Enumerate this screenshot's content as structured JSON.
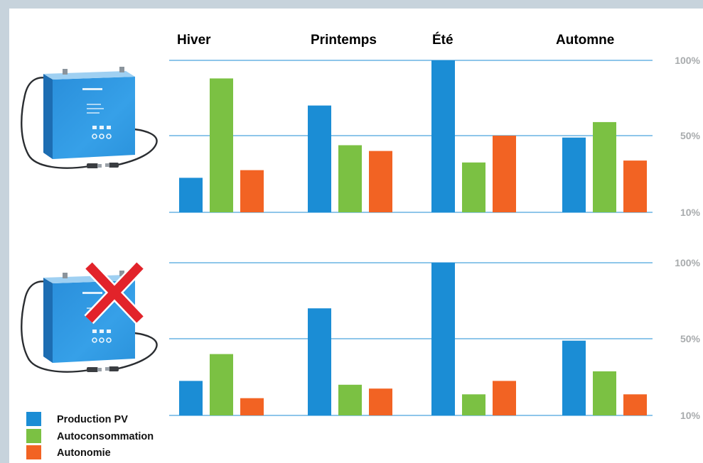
{
  "icons": {
    "panel_top": "battery-icon",
    "panel_bottom": "battery-icon",
    "panel_bottom_overlay": "red-cross-icon"
  },
  "colors": {
    "cross": "#e2232a"
  },
  "chart_data": [
    {
      "type": "bar",
      "categories": [
        "Hiver",
        "Printemps",
        "Été",
        "Automne"
      ],
      "series": [
        {
          "name": "Production PV",
          "color": "#1b8dd5",
          "values": [
            28,
            70,
            100,
            49
          ]
        },
        {
          "name": "Autoconsommation",
          "color": "#7bc143",
          "values": [
            88,
            45,
            36,
            59
          ]
        },
        {
          "name": "Autonomie",
          "color": "#f26323",
          "values": [
            32,
            42,
            50,
            37
          ]
        }
      ],
      "yticks": [
        10,
        50,
        100
      ],
      "ytick_labels": [
        "10%",
        "50%",
        "100%"
      ],
      "ylim": [
        10,
        100
      ],
      "y_axis_side": "right",
      "grid": true,
      "grid_color": "#4ba3de",
      "legend": "bottom-left"
    },
    {
      "type": "bar",
      "categories": [
        "Hiver",
        "Printemps",
        "Été",
        "Automne"
      ],
      "series": [
        {
          "name": "Production PV",
          "color": "#1b8dd5",
          "values": [
            28,
            70,
            100,
            49
          ]
        },
        {
          "name": "Autoconsommation",
          "color": "#7bc143",
          "values": [
            42,
            26,
            21,
            33
          ]
        },
        {
          "name": "Autonomie",
          "color": "#f26323",
          "values": [
            19,
            24,
            28,
            21
          ]
        }
      ],
      "yticks": [
        10,
        50,
        100
      ],
      "ytick_labels": [
        "10%",
        "50%",
        "100%"
      ],
      "ylim": [
        10,
        100
      ],
      "y_axis_side": "right",
      "grid": true,
      "grid_color": "#4ba3de",
      "legend": "bottom-left"
    }
  ]
}
